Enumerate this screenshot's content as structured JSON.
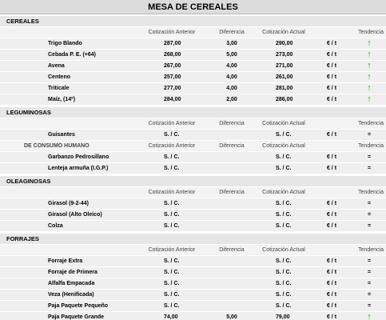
{
  "title": "MESA DE CEREALES",
  "sections": [
    {
      "title": "CEREALES",
      "blocks": [
        {
          "header": {
            "anterior": "Cotización Anterior",
            "diferencia": "Diferencia",
            "actual": "Cotización Actual",
            "tendencia": "Tendencia"
          },
          "rows": [
            {
              "product": "Trigo Blando",
              "anterior": "287,00",
              "diferencia": "3,00",
              "actual": "290,00",
              "unit": "€ / t",
              "trend": "↑"
            },
            {
              "product": "Cebada P. E. (+64)",
              "anterior": "268,00",
              "diferencia": "5,00",
              "actual": "273,00",
              "unit": "€ / t",
              "trend": "↑"
            },
            {
              "product": "Avena",
              "anterior": "267,00",
              "diferencia": "4,00",
              "actual": "271,00",
              "unit": "€ / t",
              "trend": "↑"
            },
            {
              "product": "Centeno",
              "anterior": "257,00",
              "diferencia": "4,00",
              "actual": "261,00",
              "unit": "€ / t",
              "trend": "↑"
            },
            {
              "product": "Triticale",
              "anterior": "277,00",
              "diferencia": "4,00",
              "actual": "281,00",
              "unit": "€ / t",
              "trend": "↑"
            },
            {
              "product": "Maíz, (14º)",
              "anterior": "284,00",
              "diferencia": "2,00",
              "actual": "286,00",
              "unit": "€ / t",
              "trend": "↑"
            }
          ]
        }
      ]
    },
    {
      "title": "LEGUMINOSAS",
      "blocks": [
        {
          "header": {
            "anterior": "Cotización Anterior",
            "diferencia": "Diferencia",
            "actual": "Cotización Actual",
            "tendencia": "Tendencia"
          },
          "rows": [
            {
              "product": "Guisantes",
              "anterior": "S. / C.",
              "actual": "S. / C.",
              "unit": "€ / t",
              "trend": "="
            }
          ]
        },
        {
          "header": {
            "label": "DE CONSUMO HUMANO",
            "anterior": "Cotización Anterior",
            "diferencia": "Diferencia",
            "actual": "Cotización Actual",
            "tendencia": "Tendencia"
          },
          "rows": [
            {
              "product": "Garbanzo Pedrosillano",
              "anterior": "S. / C.",
              "actual": "S. / C.",
              "unit": "€ / t",
              "trend": "="
            },
            {
              "product": "Lenteja armuña (I.G.P.)",
              "anterior": "S. / C.",
              "actual": "S. / C.",
              "unit": "€ / t",
              "trend": "="
            }
          ]
        }
      ]
    },
    {
      "title": "OLEAGINOSAS",
      "blocks": [
        {
          "header": {
            "anterior": "Cotización Anterior",
            "diferencia": "Diferencia",
            "actual": "Cotización Actual",
            "tendencia": "Tendencia"
          },
          "rows": [
            {
              "product": "Girasol (9-2-44)",
              "anterior": "S. / C.",
              "actual": "S. / C.",
              "unit": "€ / t",
              "trend": "="
            },
            {
              "product": "Girasol (Alto Oleico)",
              "anterior": "S. / C.",
              "actual": "S. / C.",
              "unit": "€ / t",
              "trend": "="
            },
            {
              "product": "Colza",
              "anterior": "S. / C.",
              "actual": "S. / C.",
              "unit": "€ / t",
              "trend": "="
            }
          ]
        }
      ]
    },
    {
      "title": "FORRAJES",
      "blocks": [
        {
          "header": {
            "anterior": "Cotización Anterior",
            "diferencia": "Diferencia",
            "actual": "Cotización Actual",
            "tendencia": "Tendencia"
          },
          "rows": [
            {
              "product": "Forraje Extra",
              "anterior": "S. / C.",
              "actual": "S. / C.",
              "unit": "€ / t",
              "trend": "="
            },
            {
              "product": "Forraje de Primera",
              "anterior": "S. / C.",
              "actual": "S. / C.",
              "unit": "€ / t",
              "trend": "="
            },
            {
              "product": "Alfalfa Empacada",
              "anterior": "S. / C.",
              "actual": "S. / C.",
              "unit": "€ / t",
              "trend": "="
            },
            {
              "product": "Veza (Henificada)",
              "anterior": "S. / C.",
              "actual": "S. / C.",
              "unit": "€ / t",
              "trend": "="
            },
            {
              "product": "Paja Paquete Pequeño",
              "anterior": "S. / C.",
              "actual": "S. / C.",
              "unit": "€ / t",
              "trend": "="
            },
            {
              "product": "Paja Paquete Grande",
              "anterior": "74,00",
              "diferencia": "5,00",
              "actual": "79,00",
              "unit": "€ / t",
              "trend": "↑"
            }
          ]
        }
      ]
    }
  ]
}
